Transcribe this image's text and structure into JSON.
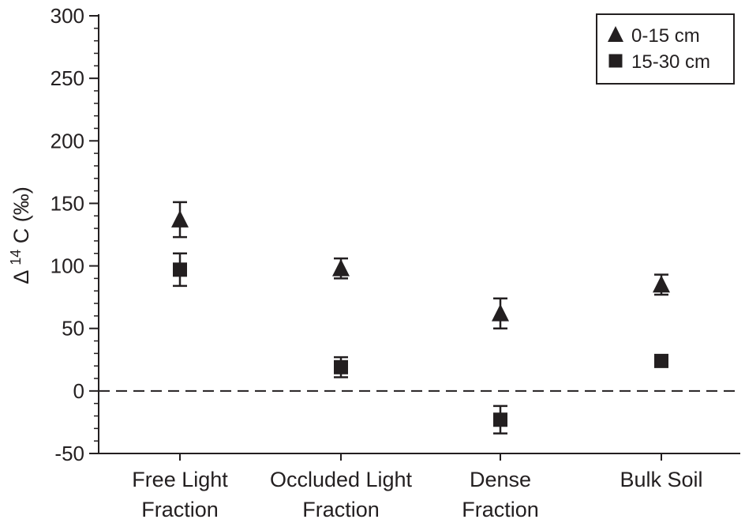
{
  "chart_data": {
    "type": "scatter",
    "title": "",
    "ylabel_prefix": "Δ",
    "ylabel_superscript": "14",
    "ylabel_suffix": "C (‰)",
    "xlabel": "",
    "categories": [
      [
        "Free Light",
        "Fraction"
      ],
      [
        "Occluded Light",
        "Fraction"
      ],
      [
        "Dense",
        "Fraction"
      ],
      [
        "Bulk Soil"
      ]
    ],
    "ylim": [
      -50,
      300
    ],
    "yticks": [
      -50,
      0,
      50,
      100,
      150,
      200,
      250,
      300
    ],
    "reference_line": {
      "y": 0,
      "style": "dashed"
    },
    "legend_position": "top-right",
    "series": [
      {
        "name": "0-15 cm",
        "marker": "triangle",
        "values": [
          137,
          98,
          62,
          85
        ],
        "error": [
          14,
          8,
          12,
          8
        ]
      },
      {
        "name": "15-30 cm",
        "marker": "square",
        "values": [
          97,
          19,
          -23,
          24
        ],
        "error": [
          13,
          8,
          11,
          null
        ]
      }
    ],
    "colors": {
      "marker": "#231f20",
      "axis": "#231f20"
    }
  }
}
